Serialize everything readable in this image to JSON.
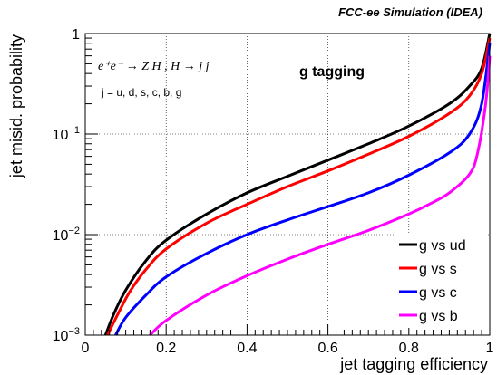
{
  "header": {
    "title": "FCC-ee Simulation (IDEA)"
  },
  "annotations": {
    "process": "e⁺e⁻ → Z H , H → j j",
    "flavours": "j = u, d, s, c, b, g",
    "tagger": "g tagging"
  },
  "chart_data": {
    "type": "line",
    "xlabel": "jet tagging efficiency",
    "ylabel": "jet misid. probability",
    "xlim": [
      0,
      1
    ],
    "ylim": [
      0.001,
      1
    ],
    "yscale": "log",
    "grid": true,
    "legend_position": "bottom-right",
    "x_ticks": [
      "0",
      "0.2",
      "0.4",
      "0.6",
      "0.8",
      "1"
    ],
    "y_ticks": [
      {
        "base": "10",
        "exp": "−3",
        "value": 0.001
      },
      {
        "base": "10",
        "exp": "−2",
        "value": 0.01
      },
      {
        "base": "10",
        "exp": "−1",
        "value": 0.1
      },
      {
        "base": "1",
        "exp": "",
        "value": 1
      }
    ],
    "series": [
      {
        "name": "g vs ud",
        "color": "#000000",
        "points": [
          [
            0.05,
            0.001
          ],
          [
            0.07,
            0.0016
          ],
          [
            0.1,
            0.0028
          ],
          [
            0.15,
            0.0055
          ],
          [
            0.2,
            0.0088
          ],
          [
            0.3,
            0.016
          ],
          [
            0.4,
            0.026
          ],
          [
            0.5,
            0.038
          ],
          [
            0.6,
            0.055
          ],
          [
            0.7,
            0.08
          ],
          [
            0.8,
            0.12
          ],
          [
            0.9,
            0.2
          ],
          [
            0.95,
            0.3
          ],
          [
            0.98,
            0.45
          ],
          [
            1.0,
            1.0
          ]
        ]
      },
      {
        "name": "g vs s",
        "color": "#ff0000",
        "points": [
          [
            0.055,
            0.001
          ],
          [
            0.08,
            0.0016
          ],
          [
            0.11,
            0.0027
          ],
          [
            0.15,
            0.0045
          ],
          [
            0.2,
            0.0072
          ],
          [
            0.3,
            0.013
          ],
          [
            0.4,
            0.02
          ],
          [
            0.5,
            0.03
          ],
          [
            0.6,
            0.043
          ],
          [
            0.7,
            0.063
          ],
          [
            0.8,
            0.095
          ],
          [
            0.9,
            0.16
          ],
          [
            0.95,
            0.24
          ],
          [
            0.98,
            0.4
          ],
          [
            1.0,
            0.9
          ]
        ]
      },
      {
        "name": "g vs c",
        "color": "#0000ff",
        "points": [
          [
            0.075,
            0.001
          ],
          [
            0.1,
            0.0015
          ],
          [
            0.15,
            0.0025
          ],
          [
            0.2,
            0.0038
          ],
          [
            0.3,
            0.0065
          ],
          [
            0.4,
            0.01
          ],
          [
            0.5,
            0.014
          ],
          [
            0.6,
            0.019
          ],
          [
            0.7,
            0.026
          ],
          [
            0.8,
            0.039
          ],
          [
            0.9,
            0.065
          ],
          [
            0.95,
            0.1
          ],
          [
            0.98,
            0.2
          ],
          [
            1.0,
            0.8
          ]
        ]
      },
      {
        "name": "g vs b",
        "color": "#ff00ff",
        "points": [
          [
            0.16,
            0.001
          ],
          [
            0.2,
            0.0014
          ],
          [
            0.3,
            0.0025
          ],
          [
            0.4,
            0.0039
          ],
          [
            0.5,
            0.0057
          ],
          [
            0.6,
            0.008
          ],
          [
            0.7,
            0.011
          ],
          [
            0.8,
            0.016
          ],
          [
            0.85,
            0.02
          ],
          [
            0.9,
            0.026
          ],
          [
            0.95,
            0.04
          ],
          [
            0.97,
            0.065
          ],
          [
            0.99,
            0.2
          ],
          [
            1.0,
            0.6
          ]
        ]
      }
    ]
  }
}
